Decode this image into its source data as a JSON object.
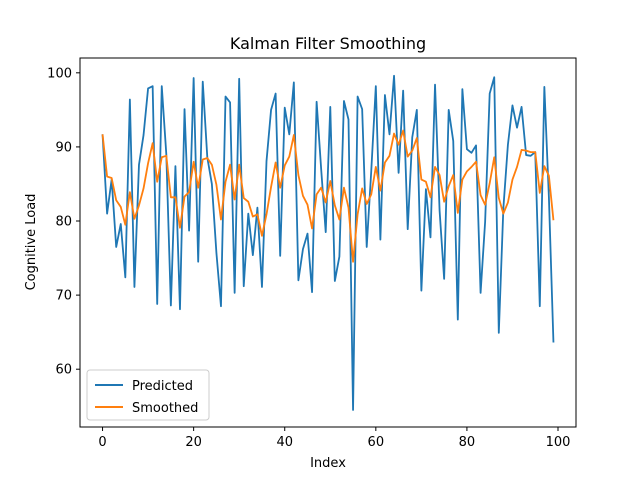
{
  "chart_data": {
    "type": "line",
    "title": "Kalman Filter Smoothing",
    "xlabel": "Index",
    "ylabel": "Cognitive Load",
    "xlim": [
      -4.95,
      103.95
    ],
    "ylim": [
      52.2,
      102.0
    ],
    "xticks": [
      0,
      20,
      40,
      60,
      80,
      100
    ],
    "yticks": [
      60,
      70,
      80,
      90,
      100
    ],
    "grid": false,
    "legend_position": "lower-left",
    "series": [
      {
        "name": "Predicted",
        "color": "#1f77b4",
        "x": [
          0,
          1,
          2,
          3,
          4,
          5,
          6,
          7,
          8,
          9,
          10,
          11,
          12,
          13,
          14,
          15,
          16,
          17,
          18,
          19,
          20,
          21,
          22,
          23,
          24,
          25,
          26,
          27,
          28,
          29,
          30,
          31,
          32,
          33,
          34,
          35,
          36,
          37,
          38,
          39,
          40,
          41,
          42,
          43,
          44,
          45,
          46,
          47,
          48,
          49,
          50,
          51,
          52,
          53,
          54,
          55,
          56,
          57,
          58,
          59,
          60,
          61,
          62,
          63,
          64,
          65,
          66,
          67,
          68,
          69,
          70,
          71,
          72,
          73,
          74,
          75,
          76,
          77,
          78,
          79,
          80,
          81,
          82,
          83,
          84,
          85,
          86,
          87,
          88,
          89,
          90,
          91,
          92,
          93,
          94,
          95,
          96,
          97,
          98,
          99
        ],
        "values": [
          91.7,
          81.0,
          85.6,
          76.5,
          79.6,
          72.4,
          96.4,
          71.1,
          87.6,
          91.6,
          97.9,
          98.2,
          68.8,
          98.2,
          89.0,
          68.6,
          87.4,
          68.1,
          95.1,
          78.7,
          99.3,
          74.5,
          98.8,
          88.6,
          85.0,
          75.7,
          68.5,
          96.8,
          96.0,
          70.3,
          99.2,
          71.2,
          81.0,
          75.4,
          81.8,
          71.1,
          88.1,
          95.0,
          97.2,
          75.3,
          95.3,
          91.7,
          98.7,
          72.0,
          76.2,
          78.3,
          70.4,
          96.1,
          87.0,
          78.5,
          95.4,
          71.9,
          75.2,
          96.2,
          93.7,
          54.5,
          96.8,
          95.1,
          76.5,
          86.8,
          98.2,
          77.5,
          97.0,
          91.7,
          99.6,
          86.5,
          97.6,
          78.9,
          91.3,
          95.0,
          70.6,
          84.3,
          77.8,
          98.4,
          81.4,
          72.2,
          95.0,
          90.8,
          66.7,
          97.8,
          89.7,
          89.2,
          90.2,
          70.3,
          79.9,
          97.2,
          99.4,
          64.9,
          81.7,
          90.3,
          95.6,
          92.6,
          95.4,
          88.9,
          88.8,
          89.3,
          68.5,
          98.1,
          83.2,
          63.6
        ]
      },
      {
        "name": "Smoothed",
        "color": "#ff7f0e",
        "x": [
          0,
          1,
          2,
          3,
          4,
          5,
          6,
          7,
          8,
          9,
          10,
          11,
          12,
          13,
          14,
          15,
          16,
          17,
          18,
          19,
          20,
          21,
          22,
          23,
          24,
          25,
          26,
          27,
          28,
          29,
          30,
          31,
          32,
          33,
          34,
          35,
          36,
          37,
          38,
          39,
          40,
          41,
          42,
          43,
          44,
          45,
          46,
          47,
          48,
          49,
          50,
          51,
          52,
          53,
          54,
          55,
          56,
          57,
          58,
          59,
          60,
          61,
          62,
          63,
          64,
          65,
          66,
          67,
          68,
          69,
          70,
          71,
          72,
          73,
          74,
          75,
          76,
          77,
          78,
          79,
          80,
          81,
          82,
          83,
          84,
          85,
          86,
          87,
          88,
          89,
          90,
          91,
          92,
          93,
          94,
          95,
          96,
          97,
          98,
          99
        ],
        "values": [
          91.7,
          86.0,
          85.8,
          82.8,
          81.9,
          79.5,
          83.9,
          80.3,
          82.1,
          84.4,
          87.8,
          90.5,
          85.3,
          88.6,
          88.8,
          83.2,
          83.2,
          79.1,
          83.3,
          83.9,
          88.0,
          84.5,
          88.3,
          88.5,
          87.6,
          84.9,
          80.2,
          85.3,
          87.6,
          82.9,
          87.6,
          83.1,
          82.6,
          80.6,
          80.9,
          78.0,
          80.9,
          84.6,
          87.9,
          84.5,
          87.5,
          88.7,
          91.6,
          86.2,
          83.4,
          82.2,
          79.0,
          83.6,
          84.5,
          82.5,
          85.4,
          82.1,
          80.2,
          84.5,
          81.8,
          74.5,
          80.9,
          84.4,
          82.3,
          83.6,
          87.3,
          84.1,
          87.9,
          88.8,
          91.8,
          90.3,
          92.2,
          88.7,
          89.5,
          91.2,
          85.6,
          85.3,
          83.2,
          87.3,
          86.2,
          82.6,
          84.7,
          86.2,
          81.1,
          85.6,
          86.7,
          87.3,
          88.0,
          83.5,
          82.2,
          85.1,
          88.6,
          83.1,
          81.0,
          82.5,
          85.6,
          87.3,
          89.6,
          89.5,
          89.3,
          89.3,
          83.8,
          87.4,
          86.1,
          80.1
        ]
      }
    ]
  }
}
